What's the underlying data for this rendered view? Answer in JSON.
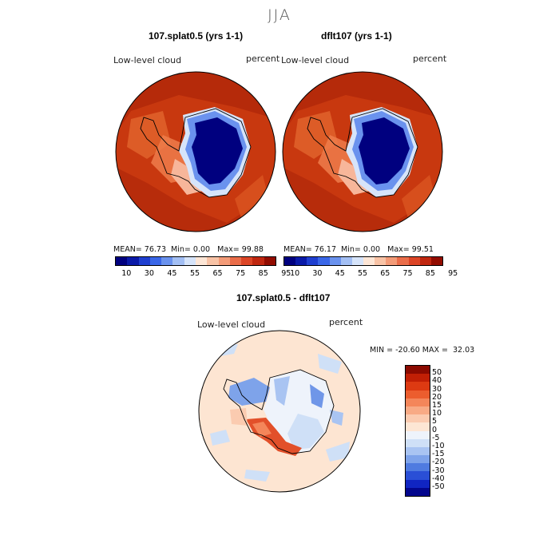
{
  "season": "JJA",
  "panels": [
    {
      "title": "107.splat0.5 (yrs 1-1)",
      "variable": "Low-level cloud",
      "units": "percent",
      "stats": {
        "mean": "76.73",
        "min": "0.00",
        "max": "99.88"
      }
    },
    {
      "title": "dflt107 (yrs 1-1)",
      "variable": "Low-level cloud",
      "units": "percent",
      "stats": {
        "mean": "76.17",
        "min": "0.00",
        "max": "99.51"
      }
    }
  ],
  "stat_labels": {
    "mean": "MEAN=",
    "min": "Min=",
    "max": "Max="
  },
  "colorbar": {
    "tick_labels": [
      "10",
      "30",
      "45",
      "55",
      "65",
      "75",
      "85",
      "95"
    ],
    "colors": [
      "#00007f",
      "#0a1aa8",
      "#1f3fd0",
      "#3a67e8",
      "#6a92ee",
      "#a3bff4",
      "#d6e4fa",
      "#fde6d6",
      "#f8c3a6",
      "#f39b78",
      "#ea6d4a",
      "#dc4526",
      "#c02710",
      "#920c00"
    ]
  },
  "diff": {
    "title": "107.splat0.5 - dflt107",
    "variable": "Low-level cloud",
    "units": "percent",
    "min_label": "MIN =",
    "min": "-20.60",
    "max_label": "MAX =",
    "max": "32.03",
    "colorbar": {
      "tick_labels": [
        "50",
        "40",
        "30",
        "20",
        "15",
        "10",
        "5",
        "0",
        "-5",
        "-10",
        "-15",
        "-20",
        "-30",
        "-40",
        "-50"
      ],
      "colors": [
        "#8b0a00",
        "#c11f05",
        "#dd3a12",
        "#ec5d2e",
        "#f4865a",
        "#f8aa85",
        "#fbcbb0",
        "#fde6d4",
        "#eef3fb",
        "#cfe0f7",
        "#a9c4f2",
        "#7ea3ea",
        "#4f7be0",
        "#2a4fd6",
        "#1025c2",
        "#03068d"
      ]
    }
  },
  "colors": {
    "ocean_high": "#c23412",
    "ocean_mid": "#d9551f",
    "ice_low": "#000e96",
    "ice_mid": "#2848d8",
    "diff_bg": "#fde5d2",
    "diff_blue": "#6f96e8",
    "diff_red": "#e2502a"
  }
}
